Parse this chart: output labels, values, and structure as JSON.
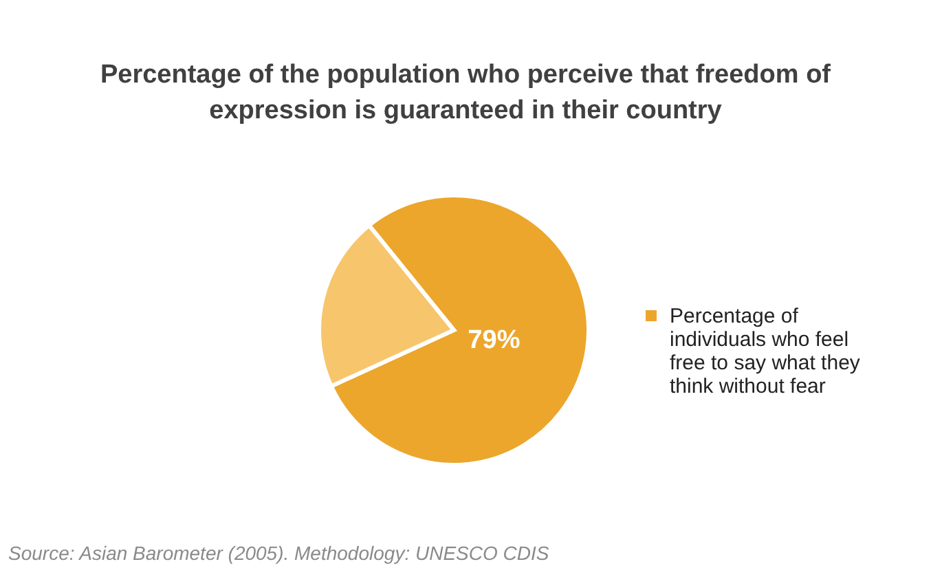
{
  "chart_data": {
    "type": "pie",
    "title": "Percentage of the population who perceive that freedom of expression is guaranteed in their country",
    "categories": [
      "Percentage of individuals who feel free to say what they think without fear",
      null
    ],
    "values": [
      79,
      21
    ],
    "colors": [
      "#eca62b",
      "#f7c56b"
    ],
    "value_labels": [
      "79%",
      null
    ],
    "legend": "right",
    "annotations": [
      "Source: Asian Barometer (2005). Methodology: UNESCO CDIS"
    ]
  }
}
